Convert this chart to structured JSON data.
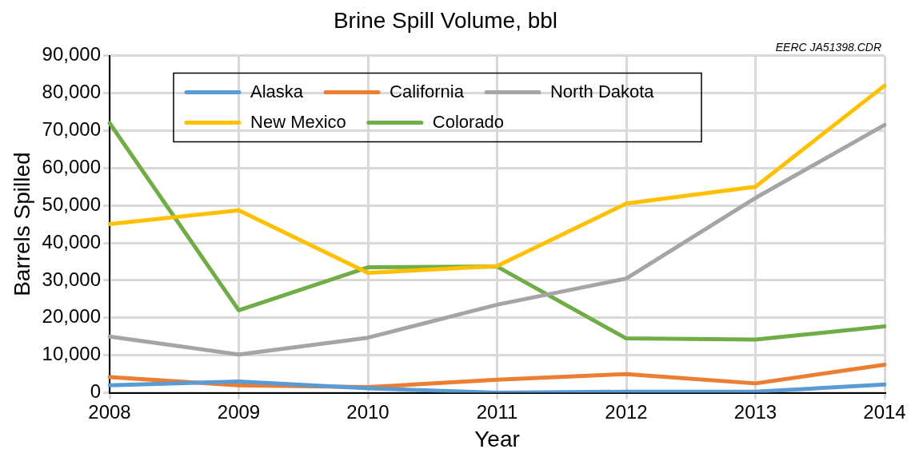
{
  "chart_data": {
    "type": "line",
    "title": "Brine Spill Volume, bbl",
    "xlabel": "Year",
    "ylabel": "Barrels Spilled",
    "annotations": [
      "EERC JA51398.CDR"
    ],
    "categories": [
      "2008",
      "2009",
      "2010",
      "2011",
      "2012",
      "2013",
      "2014"
    ],
    "series": [
      {
        "name": "Alaska",
        "color": "#5b9bd5",
        "values": [
          2000,
          3000,
          1200,
          0,
          300,
          300,
          2200
        ]
      },
      {
        "name": "California",
        "color": "#ed7d31",
        "values": [
          4200,
          2000,
          1500,
          3500,
          5000,
          2500,
          7500
        ]
      },
      {
        "name": "North Dakota",
        "color": "#a5a5a5",
        "values": [
          15000,
          10200,
          14700,
          23500,
          30500,
          52000,
          71500
        ]
      },
      {
        "name": "New Mexico",
        "color": "#ffc000",
        "values": [
          45000,
          48700,
          32000,
          33800,
          50500,
          55000,
          82000
        ]
      },
      {
        "name": "Colorado",
        "color": "#70ad47",
        "values": [
          72000,
          22000,
          33500,
          33700,
          14500,
          14200,
          17700
        ]
      }
    ],
    "ylim": [
      0,
      90000
    ],
    "yticks": [
      0,
      {
        "value": 10000,
        "label": "10,000"
      },
      {
        "value": 20000,
        "label": "20,000"
      },
      {
        "value": 30000,
        "label": "30,000"
      },
      {
        "value": 40000,
        "label": "40,000"
      },
      {
        "value": 50000,
        "label": "50,000"
      },
      {
        "value": 60000,
        "label": "60,000"
      },
      {
        "value": 70000,
        "label": "70,000"
      },
      {
        "value": 80000,
        "label": "80,000"
      },
      {
        "value": 90000,
        "label": "90,000"
      }
    ],
    "grid": true,
    "legend": "top left",
    "marker": "none",
    "line_style": "solid"
  }
}
